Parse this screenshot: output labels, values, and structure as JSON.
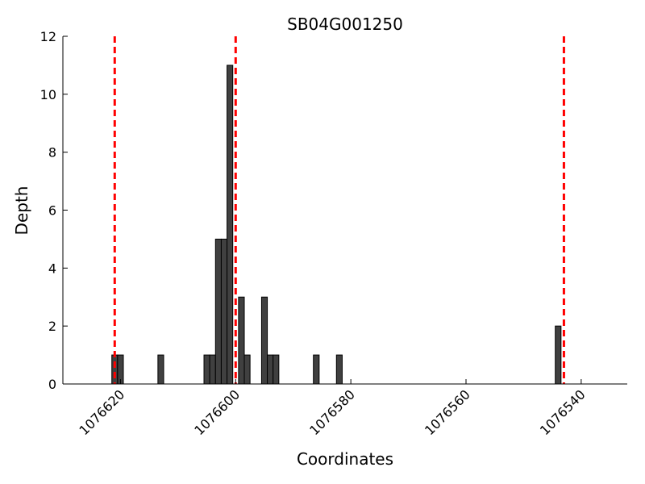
{
  "chart_data": {
    "type": "bar",
    "title": "SB04G001250",
    "xlabel": "Coordinates",
    "ylabel": "Depth",
    "xlim": [
      1076630,
      1076532
    ],
    "x_reversed": true,
    "ylim": [
      0,
      12
    ],
    "yticks": [
      0,
      2,
      4,
      6,
      8,
      10,
      12
    ],
    "xticks": [
      1076620,
      1076600,
      1076580,
      1076560,
      1076540
    ],
    "xtick_labels": [
      "1076620",
      "1076600",
      "1076580",
      "1076560",
      "1076540"
    ],
    "bar_color": "#404040",
    "bars": [
      {
        "x": 1076621,
        "y": 1
      },
      {
        "x": 1076620,
        "y": 1
      },
      {
        "x": 1076613,
        "y": 1
      },
      {
        "x": 1076605,
        "y": 1
      },
      {
        "x": 1076604,
        "y": 1
      },
      {
        "x": 1076603,
        "y": 5
      },
      {
        "x": 1076602,
        "y": 5
      },
      {
        "x": 1076601,
        "y": 11
      },
      {
        "x": 1076599,
        "y": 3
      },
      {
        "x": 1076598,
        "y": 1
      },
      {
        "x": 1076595,
        "y": 3
      },
      {
        "x": 1076594,
        "y": 1
      },
      {
        "x": 1076593,
        "y": 1
      },
      {
        "x": 1076586,
        "y": 1
      },
      {
        "x": 1076582,
        "y": 1
      },
      {
        "x": 1076544,
        "y": 2
      }
    ],
    "reference_lines": {
      "color": "#ff0000",
      "style": "dashed",
      "x": [
        1076621,
        1076600,
        1076543
      ]
    },
    "grid": false,
    "legend": "none"
  }
}
